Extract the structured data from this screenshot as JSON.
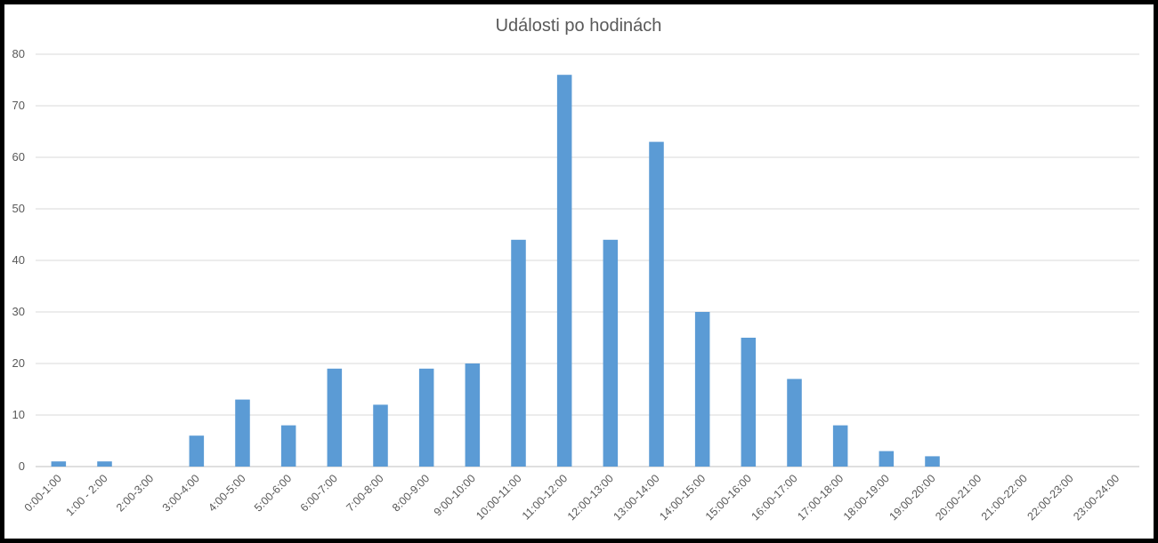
{
  "chart_data": {
    "type": "bar",
    "title": "Události po hodinách",
    "categories": [
      "0:00-1:00",
      "1:00 - 2:00",
      "2:00-3:00",
      "3:00-4:00",
      "4:00-5:00",
      "5:00-6:00",
      "6:00-7:00",
      "7:00-8:00",
      "8:00-9:00",
      "9:00-10:00",
      "10:00-11:00",
      "11:00-12:00",
      "12:00-13:00",
      "13:00-14:00",
      "14:00-15:00",
      "15:00-16:00",
      "16:00-17:00",
      "17:00-18:00",
      "18:00-19:00",
      "19:00-20:00",
      "20:00-21:00",
      "21:00-22:00",
      "22:00-23:00",
      "23:00-24:00"
    ],
    "values": [
      1,
      1,
      0,
      6,
      13,
      8,
      19,
      12,
      19,
      20,
      44,
      76,
      44,
      63,
      30,
      25,
      17,
      8,
      3,
      2,
      0,
      0,
      0,
      0
    ],
    "ylim": [
      0,
      80
    ],
    "yticks": [
      0,
      10,
      20,
      30,
      40,
      50,
      60,
      70,
      80
    ],
    "grid": true,
    "colors": {
      "bar": "#5b9bd5",
      "grid": "#d9d9d9",
      "axis": "#bfbfbf",
      "frame": "#000000"
    }
  }
}
